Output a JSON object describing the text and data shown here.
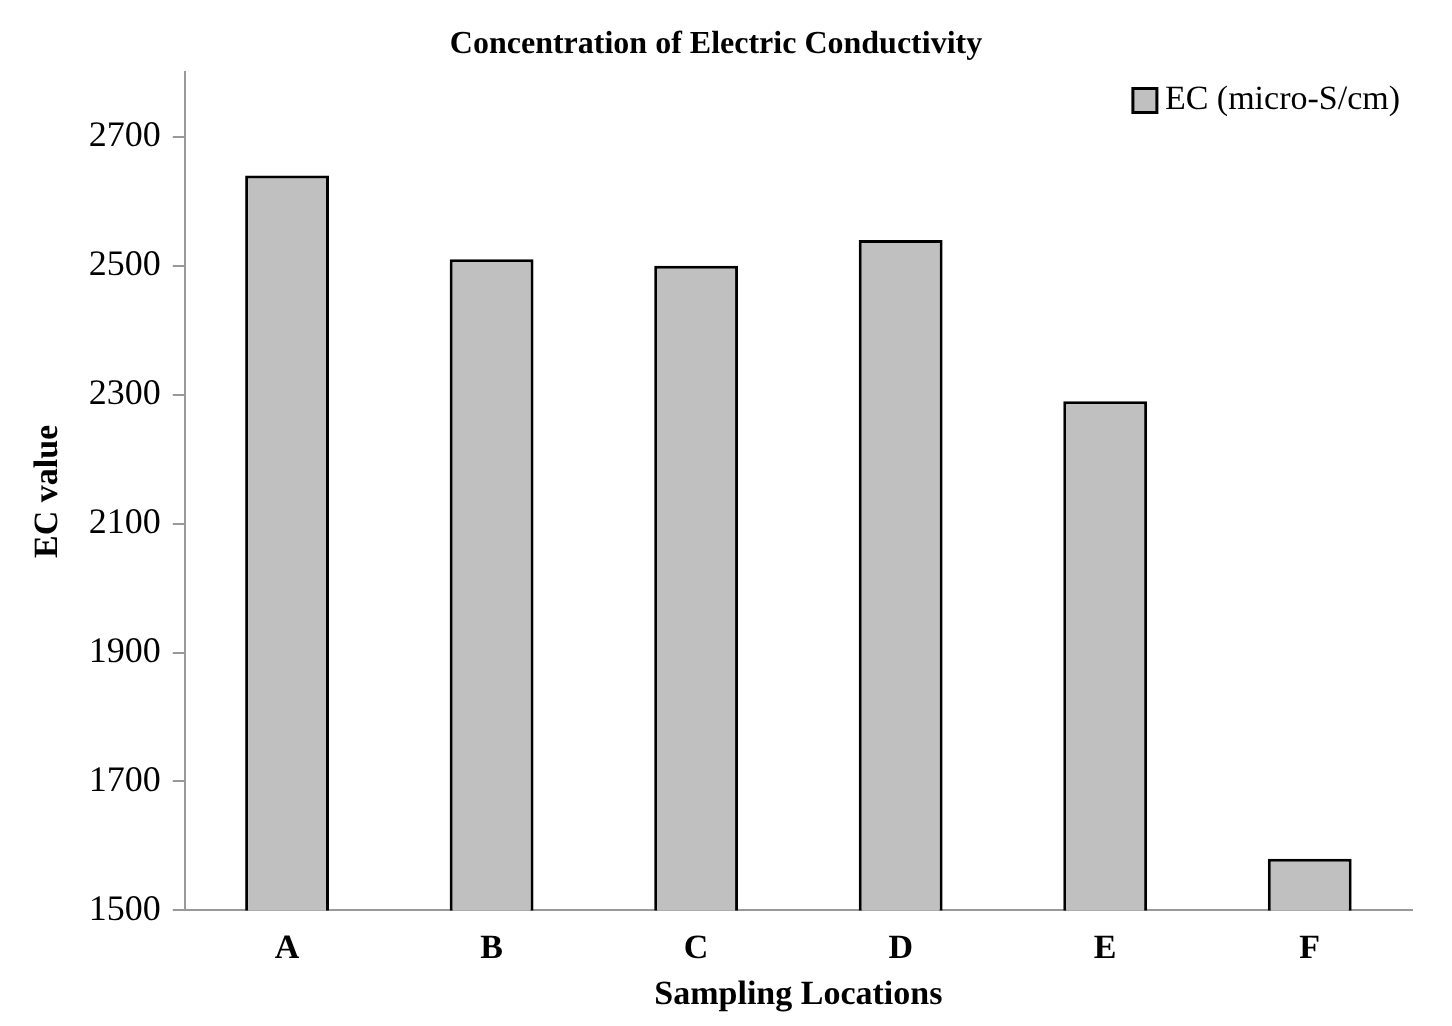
{
  "chart_data": {
    "type": "bar",
    "title": "Concentration of Electric Conductivity",
    "xlabel": "Sampling Locations",
    "ylabel": "EC value",
    "categories": [
      "A",
      "B",
      "C",
      "D",
      "E",
      "F"
    ],
    "series": [
      {
        "name": "EC (micro-S/cm)",
        "color": "#c0c0c0",
        "values": [
          2640,
          2510,
          2500,
          2540,
          2290,
          1580
        ]
      }
    ],
    "ylim": [
      1500,
      2800
    ],
    "yticks": [
      1500,
      1700,
      1900,
      2100,
      2300,
      2500,
      2700
    ],
    "grid": false,
    "legend": "top right"
  }
}
